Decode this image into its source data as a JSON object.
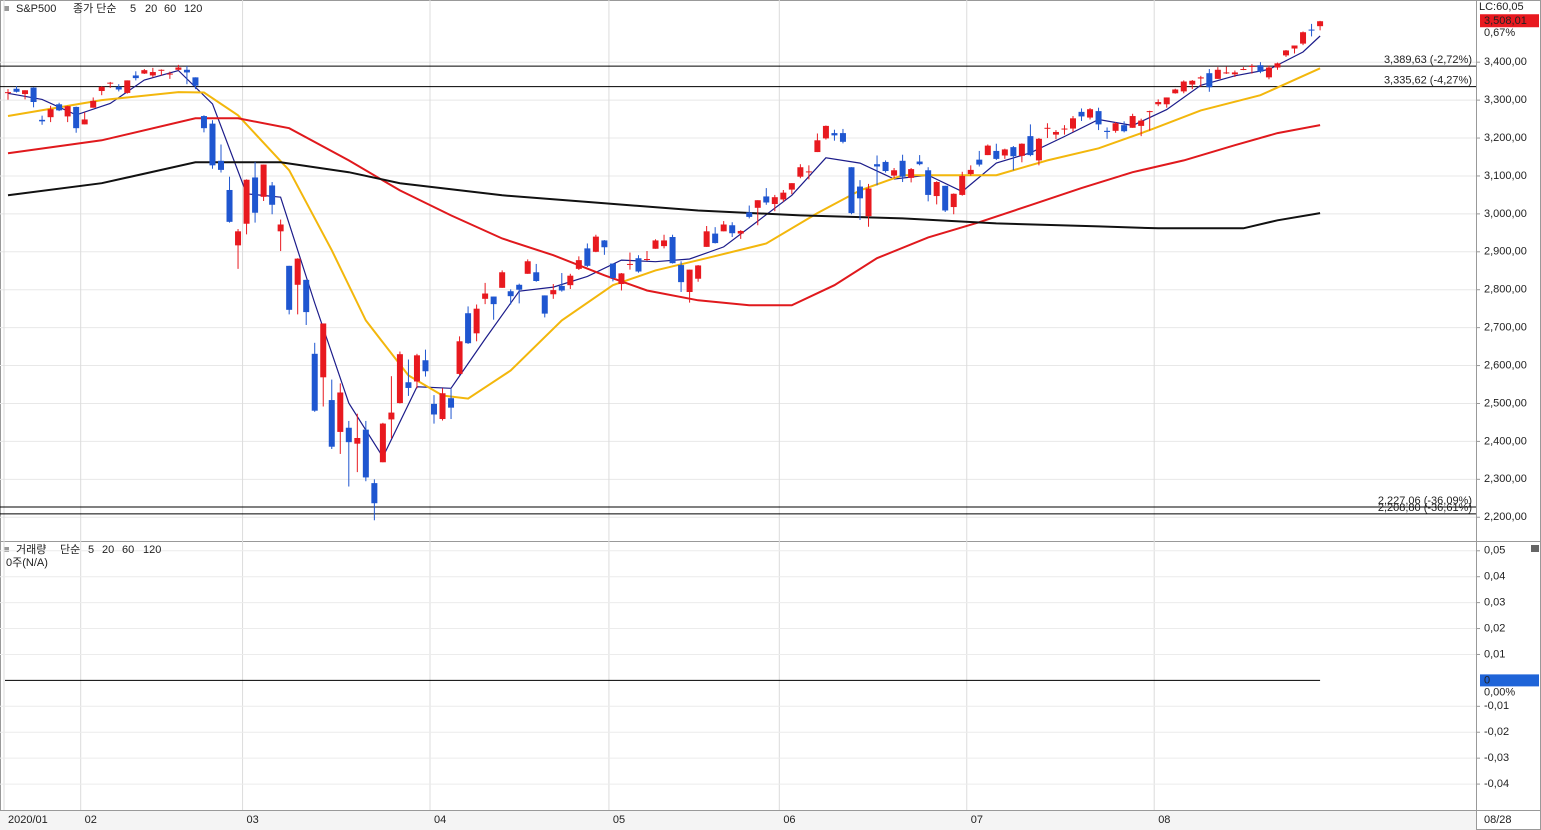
{
  "chart_data": [
    {
      "type": "candlestick",
      "title": "S&P500",
      "ma_label": "종가 단순",
      "categories": [
        "2020/01",
        null,
        null,
        null,
        null,
        null,
        null,
        null,
        null,
        "02",
        null,
        null,
        null,
        null,
        null,
        null,
        null,
        null,
        null,
        null,
        null,
        null,
        null,
        null,
        null,
        null,
        null,
        null,
        "03",
        null,
        null,
        null,
        null,
        null,
        null,
        null,
        null,
        null,
        null,
        null,
        null,
        null,
        null,
        null,
        null,
        null,
        null,
        null,
        null,
        null,
        "04",
        null,
        null,
        null,
        null,
        null,
        null,
        null,
        null,
        null,
        null,
        null,
        null,
        null,
        null,
        null,
        null,
        null,
        null,
        null,
        null,
        "05",
        null,
        null,
        null,
        null,
        null,
        null,
        null,
        null,
        null,
        null,
        null,
        null,
        null,
        null,
        null,
        null,
        null,
        null,
        null,
        "06",
        null,
        null,
        null,
        null,
        null,
        null,
        null,
        null,
        null,
        null,
        null,
        null,
        null,
        null,
        null,
        null,
        null,
        null,
        null,
        null,
        null,
        "07",
        null,
        null,
        null,
        null,
        null,
        null,
        null,
        null,
        null,
        null,
        null,
        null,
        null,
        null,
        null,
        null,
        null,
        null,
        null,
        null,
        null,
        "08",
        null,
        null,
        null,
        null,
        null,
        null,
        null,
        null,
        null,
        null,
        null,
        null,
        null,
        null,
        null,
        null,
        null,
        null,
        null
      ],
      "open": [
        3321,
        3330,
        3316,
        3333,
        3248,
        3255,
        3289,
        3257,
        3282,
        3236,
        3280,
        3324,
        3344,
        3335,
        3319,
        3365,
        3370,
        3365,
        3379,
        3370,
        3380,
        3380,
        3360,
        3258,
        3238,
        3140,
        3063,
        2917,
        2974,
        3096,
        3045,
        3075,
        2954,
        2863,
        2813,
        2826,
        2631,
        2569,
        2509,
        2425,
        2436,
        2394,
        2431,
        2290,
        2345,
        2458,
        2501,
        2556,
        2558,
        2614,
        2499,
        2459,
        2514,
        2578,
        2738,
        2685,
        2776,
        2782,
        2805,
        2796,
        2813,
        2842,
        2846,
        2785,
        2788,
        2810,
        2812,
        2855,
        2909,
        2900,
        2930,
        2869,
        2815,
        2868,
        2883,
        2879,
        2908,
        2915,
        2939,
        2865,
        2794,
        2829,
        2913,
        2948,
        2954,
        2970,
        2948,
        3004,
        3016,
        3046,
        3026,
        3038,
        3064,
        3098,
        3112,
        3163,
        3199,
        3213,
        3213,
        3123,
        3072,
        2994,
        3131,
        3137,
        3101,
        3140,
        3095,
        3138,
        3115,
        3047,
        3074,
        3018,
        3050,
        3105,
        3143,
        3155,
        3166,
        3154,
        3176,
        3153,
        3205,
        3141,
        3225,
        3209,
        3225,
        3225,
        3269,
        3254,
        3271,
        3219,
        3219,
        3234,
        3227,
        3232,
        3270,
        3289,
        3289,
        3318,
        3323,
        3341,
        3357,
        3371,
        3356,
        3373,
        3368,
        3381,
        3388,
        3392,
        3360,
        3386,
        3418,
        3436,
        3449,
        3486,
        3495
      ],
      "high": [
        3329,
        3337,
        3326,
        3334,
        3259,
        3285,
        3293,
        3285,
        3283,
        3268,
        3307,
        3337,
        3348,
        3342,
        3352,
        3376,
        3382,
        3385,
        3381,
        3375,
        3393,
        3390,
        3360,
        3260,
        3247,
        3183,
        3098,
        2960,
        3091,
        3137,
        3130,
        3084,
        2985,
        2863,
        2883,
        2826,
        2660,
        2711,
        2563,
        2553,
        2454,
        2473,
        2454,
        2300,
        2449,
        2572,
        2637,
        2616,
        2631,
        2642,
        2522,
        2540,
        2538,
        2677,
        2756,
        2761,
        2818,
        2782,
        2851,
        2801,
        2816,
        2880,
        2868,
        2785,
        2815,
        2844,
        2842,
        2888,
        2922,
        2945,
        2931,
        2869,
        2844,
        2898,
        2891,
        2902,
        2933,
        2945,
        2945,
        2875,
        2853,
        2865,
        2968,
        2965,
        2981,
        2978,
        2957,
        3022,
        3036,
        3068,
        3050,
        3063,
        3081,
        3131,
        3128,
        3212,
        3233,
        3222,
        3224,
        3123,
        3089,
        3079,
        3154,
        3141,
        3121,
        3156,
        3121,
        3155,
        3123,
        3086,
        3074,
        3054,
        3111,
        3128,
        3166,
        3183,
        3185,
        3172,
        3179,
        3186,
        3236,
        3200,
        3239,
        3221,
        3234,
        3258,
        3278,
        3279,
        3280,
        3228,
        3242,
        3244,
        3264,
        3251,
        3272,
        3302,
        3307,
        3330,
        3352,
        3353,
        3364,
        3382,
        3387,
        3388,
        3378,
        3387,
        3395,
        3400,
        3391,
        3399,
        3432,
        3444,
        3481,
        3501,
        3509
      ],
      "low": [
        3301,
        3320,
        3302,
        3281,
        3235,
        3242,
        3271,
        3242,
        3214,
        3236,
        3280,
        3313,
        3332,
        3323,
        3317,
        3352,
        3369,
        3360,
        3365,
        3356,
        3378,
        3342,
        3329,
        3215,
        3119,
        3109,
        2977,
        2855,
        2946,
        2977,
        3034,
        2999,
        2902,
        2735,
        2735,
        2707,
        2478,
        2492,
        2380,
        2367,
        2281,
        2319,
        2295,
        2192,
        2345,
        2408,
        2500,
        2520,
        2540,
        2571,
        2447,
        2455,
        2459,
        2575,
        2657,
        2664,
        2762,
        2721,
        2805,
        2761,
        2764,
        2842,
        2821,
        2727,
        2776,
        2795,
        2802,
        2852,
        2860,
        2899,
        2892,
        2822,
        2798,
        2853,
        2845,
        2876,
        2908,
        2909,
        2869,
        2794,
        2766,
        2821,
        2913,
        2922,
        2954,
        2939,
        2934,
        2988,
        2970,
        3024,
        3007,
        3032,
        3052,
        3094,
        3091,
        3163,
        3196,
        3193,
        3186,
        2999,
        2984,
        2966,
        3075,
        3109,
        3094,
        3084,
        3083,
        3128,
        3033,
        3025,
        3005,
        2999,
        3048,
        3101,
        3125,
        3155,
        3142,
        3145,
        3115,
        3136,
        3152,
        3128,
        3200,
        3197,
        3209,
        3216,
        3245,
        3249,
        3221,
        3198,
        3214,
        3215,
        3227,
        3205,
        3220,
        3284,
        3280,
        3317,
        3318,
        3329,
        3335,
        3322,
        3356,
        3369,
        3361,
        3379,
        3370,
        3371,
        3355,
        3380,
        3414,
        3423,
        3445,
        3468,
        3484
      ],
      "close": [
        3321,
        3322,
        3326,
        3295,
        3244,
        3276,
        3273,
        3284,
        3226,
        3249,
        3298,
        3335,
        3346,
        3328,
        3352,
        3358,
        3379,
        3374,
        3380,
        3370,
        3386,
        3373,
        3338,
        3226,
        3128,
        3116,
        2979,
        2954,
        3090,
        3003,
        3130,
        3024,
        2972,
        2747,
        2882,
        2741,
        2481,
        2711,
        2386,
        2529,
        2398,
        2409,
        2305,
        2237,
        2447,
        2476,
        2630,
        2541,
        2627,
        2585,
        2471,
        2527,
        2489,
        2664,
        2659,
        2750,
        2790,
        2762,
        2846,
        2783,
        2800,
        2875,
        2823,
        2737,
        2799,
        2798,
        2837,
        2878,
        2863,
        2940,
        2912,
        2831,
        2843,
        2868,
        2848,
        2881,
        2930,
        2930,
        2870,
        2820,
        2853,
        2864,
        2954,
        2923,
        2972,
        2949,
        2955,
        2992,
        3036,
        3030,
        3044,
        3056,
        3081,
        3123,
        3112,
        3194,
        3232,
        3207,
        3190,
        3002,
        3041,
        3067,
        3125,
        3113,
        3115,
        3098,
        3118,
        3131,
        3050,
        3084,
        3009,
        3053,
        3100,
        3116,
        3130,
        3180,
        3145,
        3170,
        3152,
        3185,
        3155,
        3198,
        3227,
        3216,
        3225,
        3252,
        3257,
        3276,
        3236,
        3216,
        3239,
        3218,
        3258,
        3246,
        3271,
        3295,
        3307,
        3328,
        3349,
        3351,
        3360,
        3334,
        3380,
        3373,
        3373,
        3382,
        3390,
        3375,
        3386,
        3397,
        3431,
        3444,
        3479,
        3485,
        3508
      ],
      "up_color": "#e8191f",
      "down_color": "#1f56d0",
      "series": [
        {
          "name": "5",
          "color": "#1c1c8a",
          "x": [
            0,
            4,
            8,
            12,
            16,
            20,
            24,
            28,
            32,
            36,
            40,
            44,
            48,
            52,
            56,
            60,
            64,
            68,
            72,
            76,
            80,
            84,
            88,
            92,
            96,
            100,
            104,
            108,
            112,
            116,
            120,
            124,
            128,
            132,
            136,
            140,
            144,
            148,
            152,
            154
          ],
          "values": [
            3318,
            3302,
            3261,
            3291,
            3353,
            3378,
            3290,
            3053,
            3044,
            2765,
            2501,
            2359,
            2544,
            2540,
            2670,
            2796,
            2807,
            2835,
            2878,
            2874,
            2881,
            2913,
            2981,
            3049,
            3148,
            3134,
            3092,
            3102,
            3059,
            3134,
            3161,
            3204,
            3249,
            3233,
            3275,
            3339,
            3364,
            3381,
            3427,
            3469
          ]
        },
        {
          "name": "20",
          "color": "#f3b70c",
          "x": [
            0,
            11,
            20,
            23,
            27,
            33,
            38,
            42,
            47,
            51,
            54,
            59,
            65,
            71,
            76,
            82,
            89,
            95,
            100,
            105,
            111,
            116,
            122,
            128,
            134,
            140,
            147,
            154
          ],
          "values": [
            3258,
            3300,
            3321,
            3320,
            3260,
            3115,
            2904,
            2719,
            2574,
            2521,
            2513,
            2587,
            2719,
            2812,
            2851,
            2883,
            2922,
            3002,
            3062,
            3102,
            3102,
            3102,
            3141,
            3173,
            3221,
            3273,
            3313,
            3384
          ]
        },
        {
          "name": "60",
          "color": "#e0191d",
          "x": [
            0,
            11,
            22,
            27,
            33,
            40,
            46,
            52,
            58,
            64,
            70,
            75,
            81,
            87,
            92,
            97,
            102,
            108,
            114,
            120,
            126,
            132,
            138,
            144,
            149,
            154
          ],
          "values": [
            3160,
            3194,
            3252,
            3252,
            3226,
            3141,
            3062,
            2996,
            2935,
            2891,
            2838,
            2798,
            2772,
            2759,
            2759,
            2812,
            2883,
            2938,
            2978,
            3023,
            3068,
            3110,
            3141,
            3181,
            3213,
            3234
          ]
        },
        {
          "name": "120",
          "color": "#111111",
          "x": [
            0,
            11,
            22,
            32,
            40,
            46,
            58,
            70,
            81,
            93,
            105,
            116,
            128,
            135,
            145,
            149,
            154
          ],
          "values": [
            3049,
            3081,
            3136,
            3136,
            3110,
            3081,
            3049,
            3028,
            3009,
            2996,
            2988,
            2975,
            2967,
            2962,
            2962,
            2983,
            3002
          ]
        }
      ],
      "ylim": [
        2140,
        3564
      ],
      "yticks": [
        {
          "value": 2200,
          "label": "2,200,00"
        },
        {
          "value": 2300,
          "label": "2,300,00"
        },
        {
          "value": 2400,
          "label": "2,400,00"
        },
        {
          "value": 2500,
          "label": "2,500,00"
        },
        {
          "value": 2600,
          "label": "2,600,00"
        },
        {
          "value": 2700,
          "label": "2,700,00"
        },
        {
          "value": 2800,
          "label": "2,800,00"
        },
        {
          "value": 2900,
          "label": "2,900,00"
        },
        {
          "value": 3000,
          "label": "3,000,00"
        },
        {
          "value": 3100,
          "label": "3,100,00"
        },
        {
          "value": 3200,
          "label": "3,200,00"
        },
        {
          "value": 3300,
          "label": "3,300,00"
        },
        {
          "value": 3400,
          "label": "3,400,00"
        }
      ],
      "grid": true,
      "reference_lines": [
        {
          "value": 3389.63,
          "label": "3,389,63 (-2,72%)"
        },
        {
          "value": 3335.62,
          "label": "3,335,62 (-4,27%)"
        },
        {
          "value": 2227.06,
          "label": "2,227,06 (-36,09%)"
        },
        {
          "value": 2208.8,
          "label": "2,208,80 (-36,61%)"
        }
      ],
      "lc_label": "LC:60,05",
      "close_label": "3,508,01",
      "change_label": "0,67%",
      "last_date": "08/28"
    },
    {
      "type": "volume",
      "title": "거래량",
      "ma_label": "단순",
      "status": "0주(N/A)",
      "series": [
        {
          "name": "5",
          "color": "#1c1c8a"
        },
        {
          "name": "20",
          "color": "#e0191d"
        },
        {
          "name": "60",
          "color": "#1f8a3a"
        },
        {
          "name": "120",
          "color": "#111111"
        }
      ],
      "ylim": [
        -0.05,
        0.053
      ],
      "yticks": [
        {
          "value": 0.05,
          "label": "0,05"
        },
        {
          "value": 0.04,
          "label": "0,04"
        },
        {
          "value": 0.03,
          "label": "0,03"
        },
        {
          "value": 0.02,
          "label": "0,02"
        },
        {
          "value": 0.01,
          "label": "0,01"
        },
        {
          "value": -0.01,
          "label": "-0,01"
        },
        {
          "value": -0.02,
          "label": "-0,02"
        },
        {
          "value": -0.03,
          "label": "-0,03"
        },
        {
          "value": -0.04,
          "label": "-0,04"
        }
      ],
      "last_value": 0,
      "change_label": "0,00%"
    }
  ]
}
